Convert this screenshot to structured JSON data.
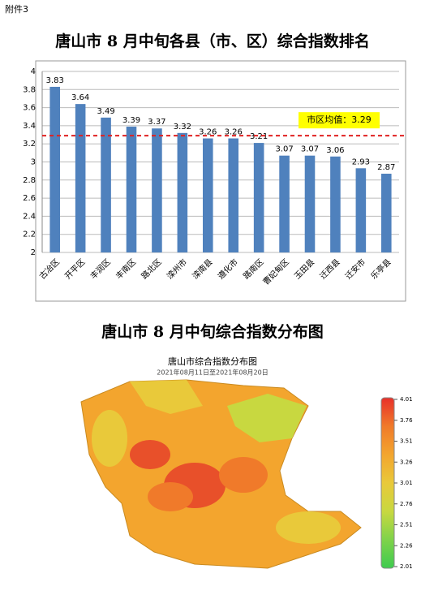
{
  "attachment_label": "附件3",
  "chart_data": {
    "type": "bar",
    "title": "唐山市 8 月中旬各县（市、区）综合指数排名",
    "categories": [
      "古冶区",
      "开平区",
      "丰润区",
      "丰南区",
      "路北区",
      "滦州市",
      "滦南县",
      "遵化市",
      "路南区",
      "曹妃甸区",
      "玉田县",
      "迁西县",
      "迁安市",
      "乐亭县"
    ],
    "values": [
      3.83,
      3.64,
      3.49,
      3.39,
      3.37,
      3.32,
      3.26,
      3.26,
      3.21,
      3.07,
      3.07,
      3.06,
      2.93,
      2.87
    ],
    "color": "#4f81bd",
    "ylim": [
      2,
      4
    ],
    "yticks": [
      2,
      2.2,
      2.4,
      2.6,
      2.8,
      3,
      3.2,
      3.4,
      3.6,
      3.8,
      4
    ],
    "grid": true,
    "reference_line": {
      "value": 3.29,
      "label": "市区均值：3.29",
      "color": "#e02020"
    }
  },
  "map": {
    "heading": "唐山市 8 月中旬综合指数分布图",
    "title": "唐山市综合指数分布图",
    "subtitle": "2021年08月11日至2021年08月20日",
    "legend": {
      "range": [
        2.01,
        4.01
      ],
      "ticks": [
        4.01,
        3.76,
        3.51,
        3.26,
        3.01,
        2.76,
        2.51,
        2.26,
        2.01
      ],
      "colors": [
        "#e8302a",
        "#f07a2a",
        "#f3a52e",
        "#e9c93a",
        "#c8d840",
        "#7fd34a",
        "#3ecb4f"
      ]
    }
  }
}
